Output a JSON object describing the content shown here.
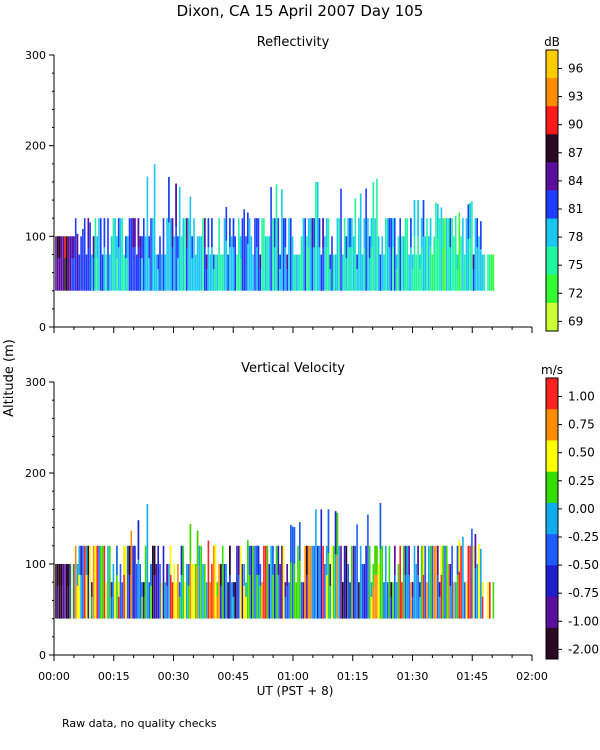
{
  "title": "Dixon, CA 15 April 2007  Day 105",
  "ylabel": "Altitude (m)",
  "xlabel": "UT  (PST + 8)",
  "footnote": "Raw data, no quality checks",
  "x_ticks": [
    "00:00",
    "00:15",
    "00:30",
    "00:45",
    "01:00",
    "01:15",
    "01:30",
    "01:45",
    "02:00"
  ],
  "y_ticks": [
    "0",
    "100",
    "200",
    "300"
  ],
  "chart_data": [
    {
      "type": "heatmap",
      "title": "Reflectivity",
      "unit": "dB",
      "xlim_minutes": [
        0,
        120
      ],
      "ylim": [
        0,
        300
      ],
      "colorbar_labels": [
        "69",
        "72",
        "75",
        "78",
        "81",
        "84",
        "87",
        "90",
        "93",
        "96"
      ],
      "colorbar_colors": [
        "#ccff33",
        "#33ff33",
        "#22f5a0",
        "#19c8f0",
        "#1f3cff",
        "#5a0f9e",
        "#2a0a22",
        "#ff1a1a",
        "#ff8c00",
        "#ffcc00"
      ],
      "profiles": [
        {
          "t": 0,
          "top": 100,
          "value": 86
        },
        {
          "t": 5,
          "top": 100,
          "value": 82
        },
        {
          "t": 10,
          "top": 120,
          "value": 79
        },
        {
          "t": 15,
          "top": 120,
          "value": 78
        },
        {
          "t": 20,
          "top": 140,
          "value": 79
        },
        {
          "t": 25,
          "top": 180,
          "value": 80
        },
        {
          "t": 30,
          "top": 160,
          "value": 79
        },
        {
          "t": 35,
          "top": 140,
          "value": 78
        },
        {
          "t": 40,
          "top": 120,
          "value": 78
        },
        {
          "t": 45,
          "top": 140,
          "value": 79
        },
        {
          "t": 50,
          "top": 120,
          "value": 79
        },
        {
          "t": 55,
          "top": 160,
          "value": 78
        },
        {
          "t": 60,
          "top": 140,
          "value": 78
        },
        {
          "t": 65,
          "top": 160,
          "value": 78
        },
        {
          "t": 70,
          "top": 160,
          "value": 78
        },
        {
          "t": 75,
          "top": 140,
          "value": 77
        },
        {
          "t": 80,
          "top": 160,
          "value": 78
        },
        {
          "t": 85,
          "top": 180,
          "value": 78
        },
        {
          "t": 90,
          "top": 140,
          "value": 76
        },
        {
          "t": 95,
          "top": 140,
          "value": 75
        },
        {
          "t": 100,
          "top": 120,
          "value": 75
        },
        {
          "t": 105,
          "top": 140,
          "value": 78
        },
        {
          "t": 110,
          "top": 80,
          "value": 75
        }
      ],
      "data_bottom": 40
    },
    {
      "type": "heatmap",
      "title": "Vertical Velocity",
      "unit": "m/s",
      "xlim_minutes": [
        0,
        120
      ],
      "ylim": [
        0,
        300
      ],
      "colorbar_labels": [
        "1.00",
        "0.75",
        "0.50",
        "0.25",
        "0.00",
        "-0.25",
        "-0.50",
        "-0.75",
        "-1.00",
        "-2.00"
      ],
      "colorbar_colors": [
        "#ff2222",
        "#ff8c00",
        "#ffff00",
        "#33dd00",
        "#11aaee",
        "#1f5cff",
        "#1f1fd0",
        "#5a0f9e",
        "#2a0a22"
      ],
      "profiles": [
        {
          "t": 0,
          "top": 100,
          "value": -1.5
        },
        {
          "t": 5,
          "top": 120,
          "value": 0.0
        },
        {
          "t": 10,
          "top": 120,
          "value": 0.5
        },
        {
          "t": 15,
          "top": 120,
          "value": 0.4
        },
        {
          "t": 20,
          "top": 140,
          "value": 0.2
        },
        {
          "t": 25,
          "top": 180,
          "value": -0.4
        },
        {
          "t": 30,
          "top": 160,
          "value": 0.3
        },
        {
          "t": 35,
          "top": 140,
          "value": 0.6
        },
        {
          "t": 40,
          "top": 120,
          "value": 0.5
        },
        {
          "t": 45,
          "top": 140,
          "value": -0.5
        },
        {
          "t": 50,
          "top": 120,
          "value": 0.4
        },
        {
          "t": 55,
          "top": 160,
          "value": 0.1
        },
        {
          "t": 60,
          "top": 140,
          "value": -0.3
        },
        {
          "t": 65,
          "top": 160,
          "value": 0.2
        },
        {
          "t": 70,
          "top": 160,
          "value": 0.3
        },
        {
          "t": 75,
          "top": 140,
          "value": -0.6
        },
        {
          "t": 80,
          "top": 160,
          "value": 0.4
        },
        {
          "t": 85,
          "top": 180,
          "value": 0.1
        },
        {
          "t": 90,
          "top": 140,
          "value": 0.5
        },
        {
          "t": 95,
          "top": 140,
          "value": 0.2
        },
        {
          "t": 100,
          "top": 120,
          "value": 0.3
        },
        {
          "t": 105,
          "top": 140,
          "value": 0.5
        },
        {
          "t": 110,
          "top": 80,
          "value": 0.6
        }
      ],
      "data_bottom": 40
    }
  ]
}
